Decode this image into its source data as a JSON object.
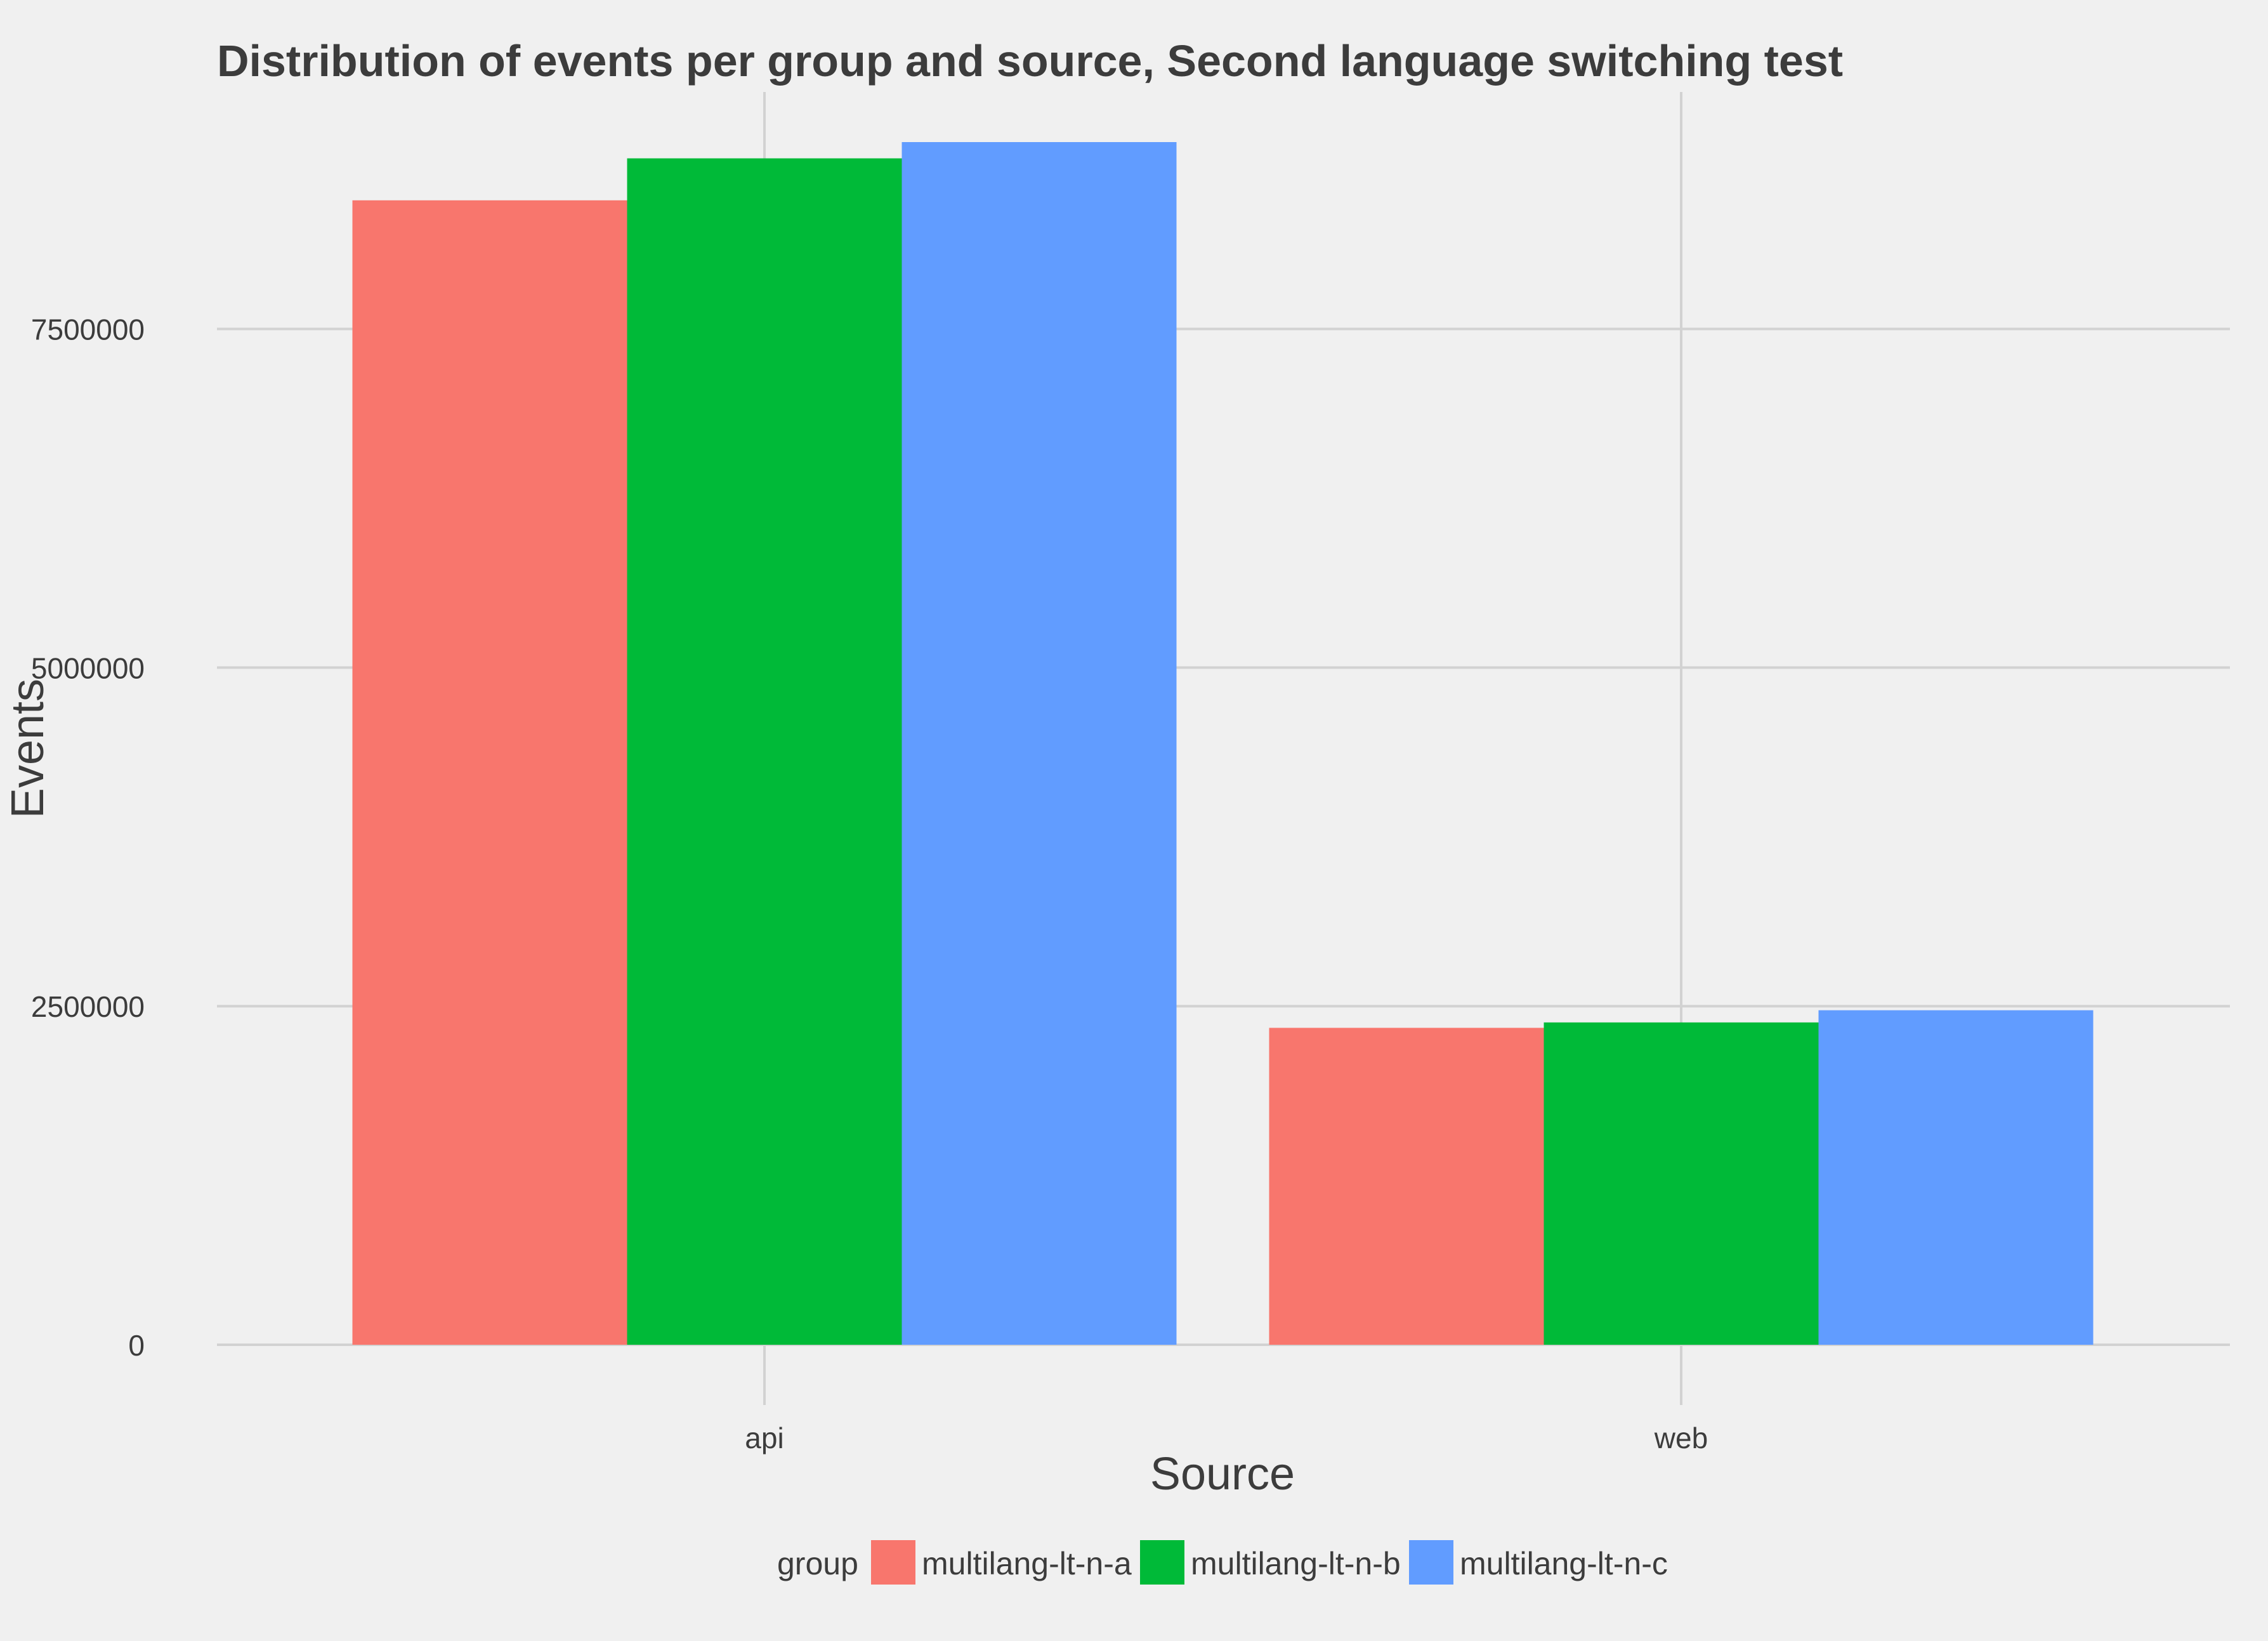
{
  "chart_data": {
    "type": "bar",
    "title": "Distribution of events per group and source, Second language switching test",
    "xlabel": "Source",
    "ylabel": "Events",
    "categories": [
      "api",
      "web"
    ],
    "series": [
      {
        "name": "multilang-lt-n-a",
        "color": "#f8766d",
        "values": [
          8450000,
          2340000
        ]
      },
      {
        "name": "multilang-lt-n-b",
        "color": "#00ba38",
        "values": [
          8760000,
          2380000
        ]
      },
      {
        "name": "multilang-lt-n-c",
        "color": "#619cff",
        "values": [
          8880000,
          2470000
        ]
      }
    ],
    "yticks": [
      0,
      2500000,
      5000000,
      7500000
    ],
    "ytick_labels": [
      "0",
      "2500000",
      "5000000",
      "7500000"
    ],
    "ylim": [
      0,
      9250000
    ],
    "grid": true,
    "legend": {
      "title": "group",
      "placement": "bottom"
    }
  }
}
